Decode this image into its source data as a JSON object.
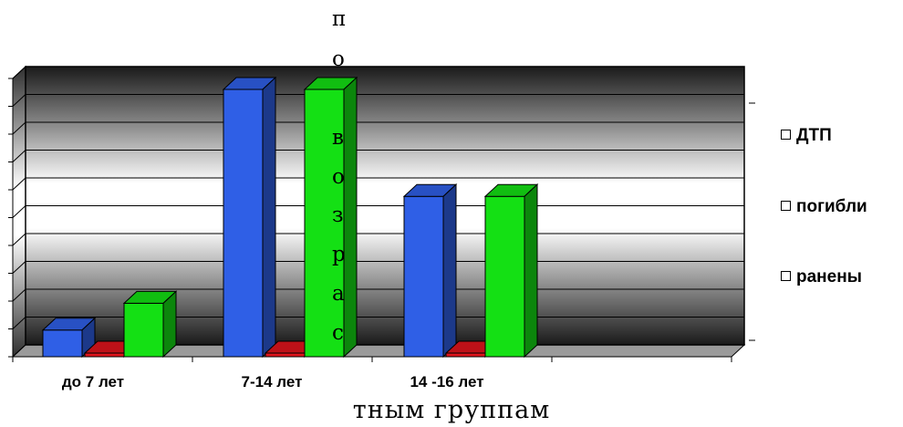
{
  "chart_data": {
    "type": "bar",
    "categories": [
      "до 7 лет",
      "7-14 лет",
      "14 -16 лет"
    ],
    "series": [
      {
        "name": "ДТП",
        "values": [
          1,
          10,
          6
        ],
        "color": "#2f5fe6"
      },
      {
        "name": "погибли",
        "values": [
          0,
          0,
          0
        ],
        "color": "#e0141c"
      },
      {
        "name": "ранены",
        "values": [
          2,
          10,
          6
        ],
        "color": "#14e014"
      }
    ],
    "ylim": [
      0,
      10
    ],
    "grid": true,
    "legend_position": "right",
    "style": "3d-clustered"
  },
  "legend": [
    {
      "label": "ДТП"
    },
    {
      "label": "погибли"
    },
    {
      "label": "ранены"
    }
  ],
  "overlay_vertical_letters": [
    "п",
    "о",
    "в",
    "о",
    "з",
    "р",
    "а",
    "с"
  ],
  "overlay_bottom_text": "тным группам"
}
